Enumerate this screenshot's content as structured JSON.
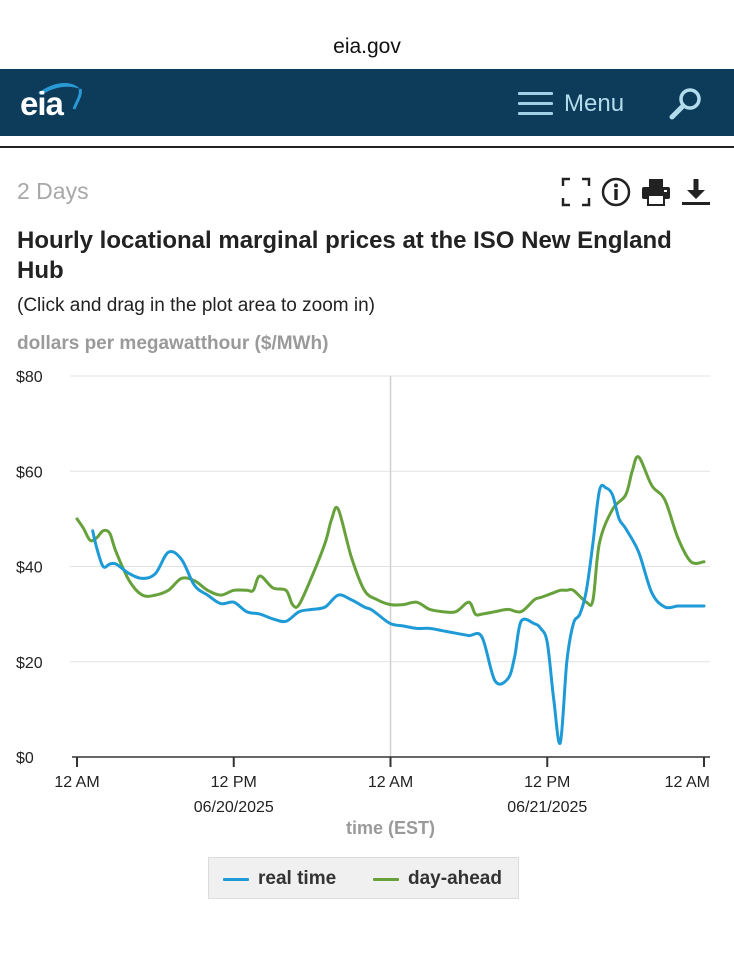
{
  "browser": {
    "url": "eia.gov"
  },
  "header": {
    "logo_text": "eia",
    "menu_label": "Menu",
    "menu_icon": "hamburger-icon",
    "search_icon": "magnifier-icon",
    "bg_color": "#0d3b5a"
  },
  "toolbar": {
    "range_label": "2 Days",
    "icons": [
      "fullscreen-icon",
      "info-icon",
      "print-icon",
      "download-icon"
    ]
  },
  "chart_title": "Hourly locational marginal prices at the ISO New England Hub",
  "chart_subtitle": "(Click and drag in the plot area to zoom in)",
  "y_axis_label": "dollars per megawatthour ($/MWh)",
  "chart_data": {
    "type": "line",
    "ylabel": "dollars per megawatthour ($/MWh)",
    "xlabel": "time (EST)",
    "ylim": [
      0,
      80
    ],
    "xlim": [
      0,
      48
    ],
    "y_ticks": [
      "$0",
      "$20",
      "$40",
      "$60",
      "$80"
    ],
    "x_ticks": [
      {
        "hour": 0,
        "label": "12 AM",
        "sub": ""
      },
      {
        "hour": 12,
        "label": "12 PM",
        "sub": "06/20/2025"
      },
      {
        "hour": 24,
        "label": "12 AM",
        "sub": ""
      },
      {
        "hour": 36,
        "label": "12 PM",
        "sub": "06/21/2025"
      },
      {
        "hour": 48,
        "label": "12 AM",
        "sub": ""
      }
    ],
    "gridlines": true,
    "crosshair_hour": 24,
    "legend_position": "bottom",
    "series": [
      {
        "name": "real time",
        "color": "#1e9ad6",
        "x": [
          1.2,
          1.5,
          2,
          2.5,
          3,
          4,
          5,
          6,
          7,
          8,
          9,
          10,
          11,
          12,
          13,
          14,
          15,
          16,
          17,
          18,
          19,
          20,
          21,
          22,
          22.5,
          23,
          24,
          25,
          26,
          27,
          28,
          29,
          30,
          31,
          32,
          33,
          33.5,
          34,
          35,
          35.5,
          36,
          36.5,
          37,
          37.5,
          38,
          38.5,
          39,
          39.5,
          40,
          40.5,
          41,
          41.5,
          42,
          43,
          44,
          45,
          46,
          47,
          48
        ],
        "y": [
          47.5,
          44,
          40,
          40.5,
          40.5,
          38.5,
          37.5,
          38.5,
          43,
          41.5,
          36,
          34,
          32.2,
          32.5,
          30.5,
          30,
          29,
          28.5,
          30.5,
          31,
          31.5,
          34,
          33,
          31.5,
          31,
          30,
          28,
          27.5,
          27,
          27,
          26.5,
          26,
          25.5,
          25.2,
          16,
          16.5,
          21,
          28.5,
          28,
          27,
          24,
          12,
          3,
          20,
          28,
          30,
          35,
          45,
          56,
          56.5,
          55,
          50,
          48,
          43,
          34.5,
          31.5,
          31.7,
          31.7,
          31.7
        ]
      },
      {
        "name": "day-ahead",
        "color": "#66a13b",
        "x": [
          0,
          0.5,
          1,
          1.5,
          2,
          2.5,
          3,
          4,
          5,
          6,
          7,
          8,
          9,
          10,
          11,
          12,
          13,
          13.5,
          14,
          15,
          16,
          16.5,
          17,
          18,
          19,
          19.5,
          20,
          21,
          22,
          23,
          24,
          25,
          26,
          27,
          28,
          29,
          30,
          30.5,
          31,
          32,
          33,
          34,
          35,
          35.5,
          36,
          36.5,
          37,
          37.5,
          38,
          39,
          39.5,
          40,
          41,
          42,
          42.5,
          43,
          44,
          45,
          46,
          47,
          48
        ],
        "y": [
          50,
          48,
          45.5,
          46,
          47.5,
          47,
          43,
          37,
          34,
          34,
          35,
          37.5,
          37,
          35,
          34,
          35,
          35,
          35,
          38,
          35.5,
          35,
          32,
          32,
          38,
          45,
          50,
          52,
          42,
          35,
          33,
          32,
          32,
          32.5,
          31,
          30.5,
          30.5,
          32.5,
          30,
          30,
          30.5,
          31,
          30.5,
          33,
          33.5,
          34,
          34.5,
          35,
          35,
          35,
          32.5,
          33,
          45,
          52,
          55,
          60,
          63,
          57,
          54,
          46,
          41,
          41
        ]
      }
    ]
  }
}
